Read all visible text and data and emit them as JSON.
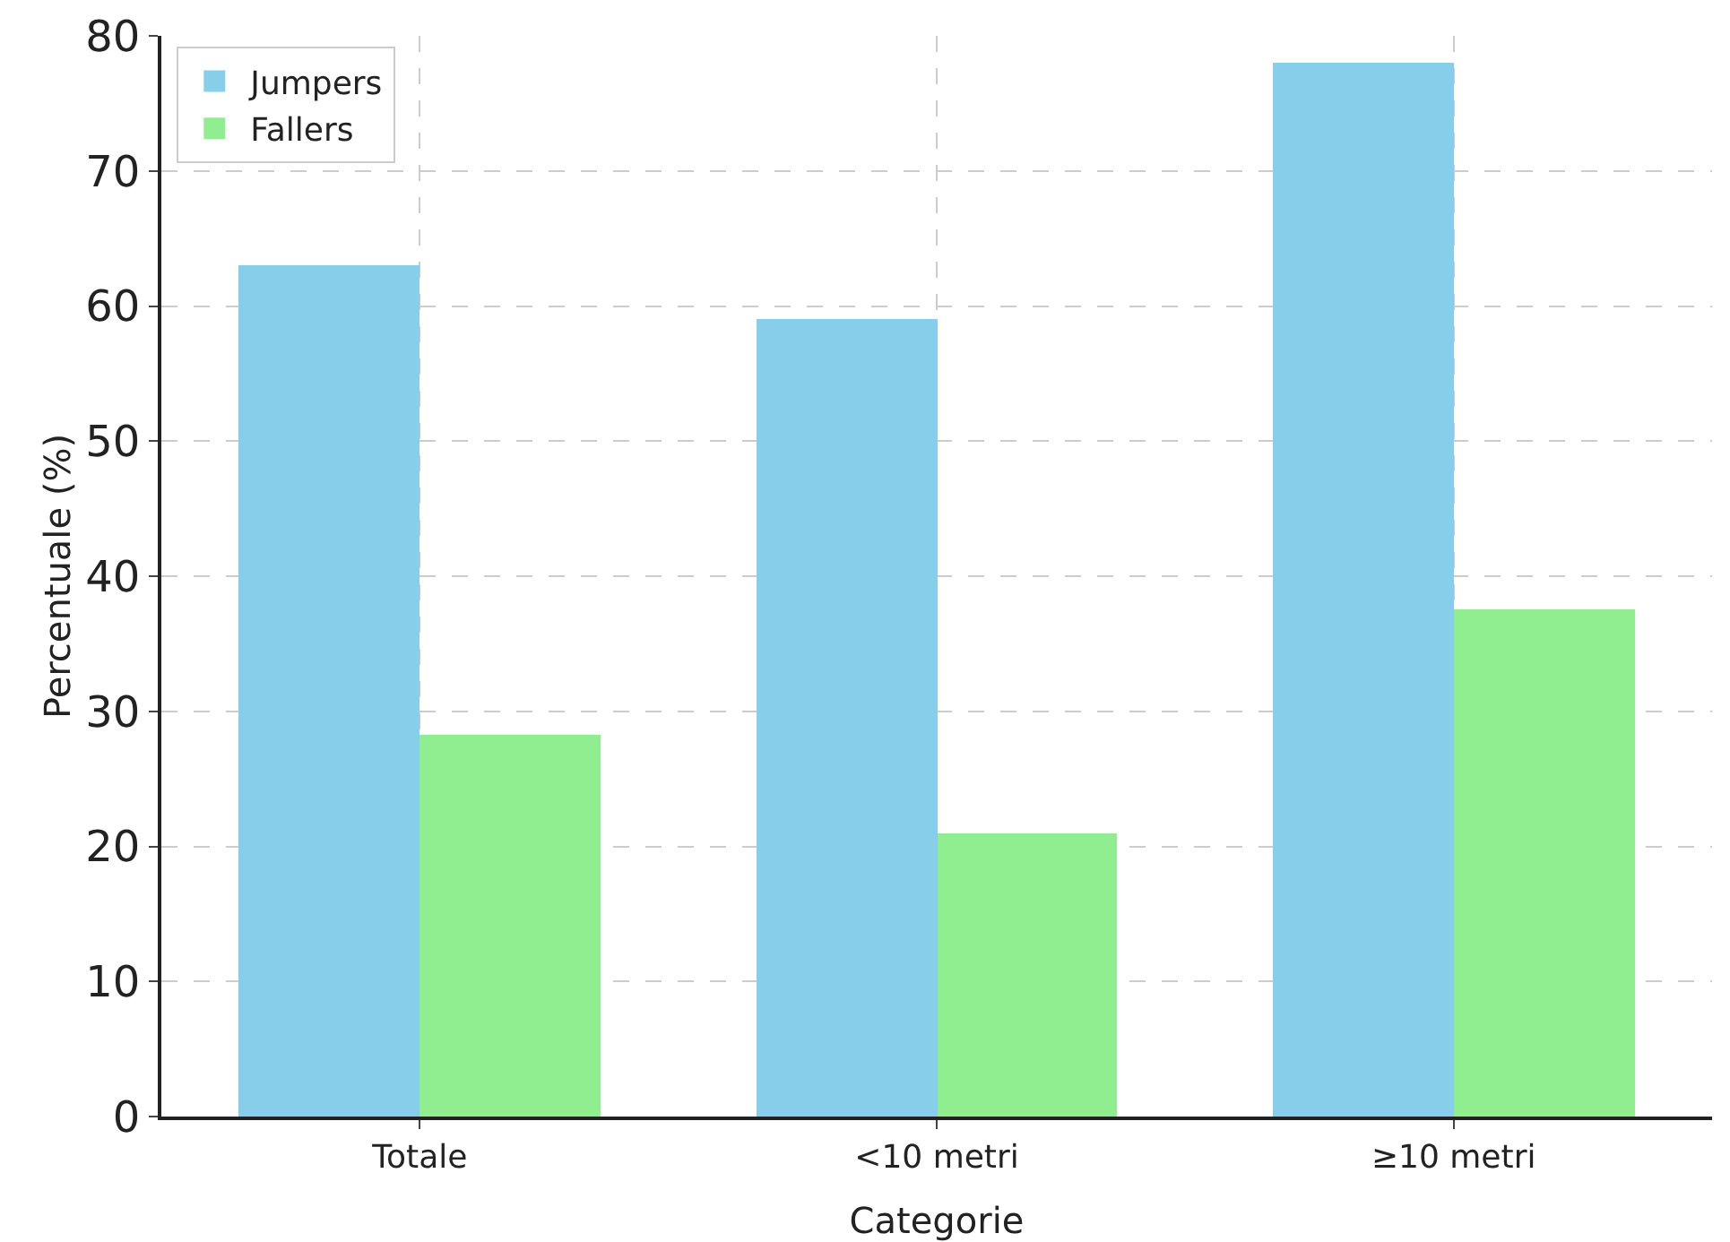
{
  "chart_data": {
    "type": "bar",
    "xlabel": "Categorie",
    "ylabel": "Percentuale (%)",
    "categories": [
      "Totale",
      "<10 metri",
      "≥10 metri"
    ],
    "series": [
      {
        "name": "Jumpers",
        "color": "#87ceeb",
        "values": [
          63,
          59,
          78
        ]
      },
      {
        "name": "Fallers",
        "color": "#90ee90",
        "values": [
          28.2,
          21,
          37.5
        ]
      }
    ],
    "ylim": [
      0,
      80
    ],
    "yticks": [
      0,
      10,
      20,
      30,
      40,
      50,
      60,
      70,
      80
    ],
    "grid": true,
    "legend": "top left"
  }
}
